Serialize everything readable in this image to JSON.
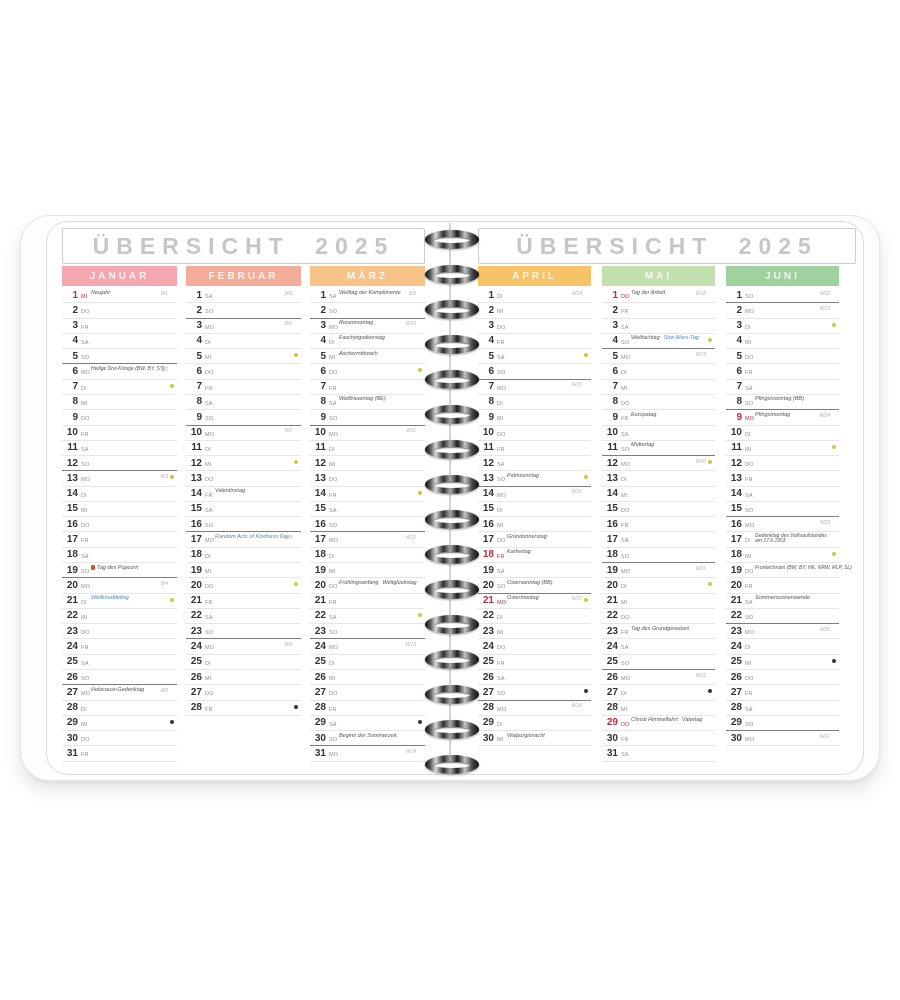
{
  "title_left": "ÜBERSICHT 2025",
  "title_right": "ÜBERSICHT 2025",
  "colors": {
    "holiday_red": "#c32a40",
    "special_blue": "#4f8ab3",
    "moon_light": "#d2c843",
    "moon_dark": "#3a3a3a"
  },
  "months": [
    {
      "name": "JANUAR",
      "color": "#f3a7ae",
      "days": [
        {
          "day": 1,
          "wd": "MI",
          "red": true,
          "note": "Neujahr",
          "week": "W1"
        },
        {
          "day": 2,
          "wd": "DO"
        },
        {
          "day": 3,
          "wd": "FR"
        },
        {
          "day": 4,
          "wd": "SA"
        },
        {
          "day": 5,
          "wd": "SO"
        },
        {
          "day": 6,
          "wd": "MO",
          "note": "Heilige Drei Könige (BW, BY, ST)",
          "week": "W2"
        },
        {
          "day": 7,
          "wd": "DI",
          "moon": "fq"
        },
        {
          "day": 8,
          "wd": "MI"
        },
        {
          "day": 9,
          "wd": "DO"
        },
        {
          "day": 10,
          "wd": "FR"
        },
        {
          "day": 11,
          "wd": "SA"
        },
        {
          "day": 12,
          "wd": "SO"
        },
        {
          "day": 13,
          "wd": "MO",
          "week": "W3",
          "moon": "full"
        },
        {
          "day": 14,
          "wd": "DI"
        },
        {
          "day": 15,
          "wd": "MI"
        },
        {
          "day": 16,
          "wd": "DO"
        },
        {
          "day": 17,
          "wd": "FR"
        },
        {
          "day": 18,
          "wd": "SA"
        },
        {
          "day": 19,
          "wd": "SO",
          "icon": "popcorn",
          "note": "Tag des Popcorn"
        },
        {
          "day": 20,
          "wd": "MO",
          "week": "W4"
        },
        {
          "day": 21,
          "wd": "DI",
          "note_blue": "Weltknuddeltag",
          "moon": "lq"
        },
        {
          "day": 22,
          "wd": "MI"
        },
        {
          "day": 23,
          "wd": "DO"
        },
        {
          "day": 24,
          "wd": "FR"
        },
        {
          "day": 25,
          "wd": "SA"
        },
        {
          "day": 26,
          "wd": "SO"
        },
        {
          "day": 27,
          "wd": "MO",
          "note": "Holocaust-Gedenktag",
          "week": "W5"
        },
        {
          "day": 28,
          "wd": "DI"
        },
        {
          "day": 29,
          "wd": "MI",
          "moon": "new"
        },
        {
          "day": 30,
          "wd": "DO"
        },
        {
          "day": 31,
          "wd": "FR"
        }
      ]
    },
    {
      "name": "FEBRUAR",
      "color": "#f4ad9a",
      "days": [
        {
          "day": 1,
          "wd": "SA",
          "week": "W5"
        },
        {
          "day": 2,
          "wd": "SO"
        },
        {
          "day": 3,
          "wd": "MO",
          "week": "W6"
        },
        {
          "day": 4,
          "wd": "DI"
        },
        {
          "day": 5,
          "wd": "MI",
          "moon": "fq"
        },
        {
          "day": 6,
          "wd": "DO"
        },
        {
          "day": 7,
          "wd": "FR"
        },
        {
          "day": 8,
          "wd": "SA"
        },
        {
          "day": 9,
          "wd": "SO"
        },
        {
          "day": 10,
          "wd": "MO",
          "week": "W7"
        },
        {
          "day": 11,
          "wd": "DI"
        },
        {
          "day": 12,
          "wd": "MI",
          "moon": "full"
        },
        {
          "day": 13,
          "wd": "DO"
        },
        {
          "day": 14,
          "wd": "FR",
          "note": "Valentinstag"
        },
        {
          "day": 15,
          "wd": "SA"
        },
        {
          "day": 16,
          "wd": "SO"
        },
        {
          "day": 17,
          "wd": "MO",
          "note_blue": "Random Acts of Kindness Day",
          "week": "W8"
        },
        {
          "day": 18,
          "wd": "DI"
        },
        {
          "day": 19,
          "wd": "MI"
        },
        {
          "day": 20,
          "wd": "DO",
          "moon": "lq"
        },
        {
          "day": 21,
          "wd": "FR"
        },
        {
          "day": 22,
          "wd": "SA"
        },
        {
          "day": 23,
          "wd": "SO"
        },
        {
          "day": 24,
          "wd": "MO",
          "week": "W9"
        },
        {
          "day": 25,
          "wd": "DI"
        },
        {
          "day": 26,
          "wd": "MI"
        },
        {
          "day": 27,
          "wd": "DO"
        },
        {
          "day": 28,
          "wd": "FR",
          "moon": "new"
        }
      ]
    },
    {
      "name": "MÄRZ",
      "color": "#f8c388",
      "days": [
        {
          "day": 1,
          "wd": "SA",
          "note": "Welttag der Komplimente",
          "week": "W9"
        },
        {
          "day": 2,
          "wd": "SO"
        },
        {
          "day": 3,
          "wd": "MO",
          "note": "Rosenmontag",
          "week": "W10"
        },
        {
          "day": 4,
          "wd": "DI",
          "note": "Faschingsdienstag"
        },
        {
          "day": 5,
          "wd": "MI",
          "note": "Aschermittwoch"
        },
        {
          "day": 6,
          "wd": "DO",
          "moon": "fq"
        },
        {
          "day": 7,
          "wd": "FR"
        },
        {
          "day": 8,
          "wd": "SA",
          "note": "Weltfrauentag (BE)"
        },
        {
          "day": 9,
          "wd": "SO"
        },
        {
          "day": 10,
          "wd": "MO",
          "week": "W11"
        },
        {
          "day": 11,
          "wd": "DI"
        },
        {
          "day": 12,
          "wd": "MI"
        },
        {
          "day": 13,
          "wd": "DO"
        },
        {
          "day": 14,
          "wd": "FR",
          "moon": "full"
        },
        {
          "day": 15,
          "wd": "SA"
        },
        {
          "day": 16,
          "wd": "SO"
        },
        {
          "day": 17,
          "wd": "MO",
          "week": "W12"
        },
        {
          "day": 18,
          "wd": "DI"
        },
        {
          "day": 19,
          "wd": "MI"
        },
        {
          "day": 20,
          "wd": "DO",
          "note": "Frühlingsanfang",
          "note2": "Weltglückstag"
        },
        {
          "day": 21,
          "wd": "FR"
        },
        {
          "day": 22,
          "wd": "SA",
          "moon": "lq"
        },
        {
          "day": 23,
          "wd": "SO"
        },
        {
          "day": 24,
          "wd": "MO",
          "week": "W13"
        },
        {
          "day": 25,
          "wd": "DI"
        },
        {
          "day": 26,
          "wd": "MI"
        },
        {
          "day": 27,
          "wd": "DO"
        },
        {
          "day": 28,
          "wd": "FR"
        },
        {
          "day": 29,
          "wd": "SA",
          "moon": "new"
        },
        {
          "day": 30,
          "wd": "SO",
          "note": "Beginn der Sommerzeit"
        },
        {
          "day": 31,
          "wd": "MO",
          "week": "W14"
        }
      ]
    },
    {
      "name": "APRIL",
      "color": "#f6c368",
      "days": [
        {
          "day": 1,
          "wd": "DI",
          "week": "W14"
        },
        {
          "day": 2,
          "wd": "MI"
        },
        {
          "day": 3,
          "wd": "DO"
        },
        {
          "day": 4,
          "wd": "FR"
        },
        {
          "day": 5,
          "wd": "SA",
          "moon": "fq"
        },
        {
          "day": 6,
          "wd": "SO"
        },
        {
          "day": 7,
          "wd": "MO",
          "week": "W15"
        },
        {
          "day": 8,
          "wd": "DI"
        },
        {
          "day": 9,
          "wd": "MI"
        },
        {
          "day": 10,
          "wd": "DO"
        },
        {
          "day": 11,
          "wd": "FR"
        },
        {
          "day": 12,
          "wd": "SA"
        },
        {
          "day": 13,
          "wd": "SO",
          "note": "Palmsonntag",
          "moon": "full"
        },
        {
          "day": 14,
          "wd": "MO",
          "week": "W16"
        },
        {
          "day": 15,
          "wd": "DI"
        },
        {
          "day": 16,
          "wd": "MI"
        },
        {
          "day": 17,
          "wd": "DO",
          "note": "Gründonnerstag"
        },
        {
          "day": 18,
          "wd": "FR",
          "red": true,
          "note": "Karfreitag"
        },
        {
          "day": 19,
          "wd": "SA"
        },
        {
          "day": 20,
          "wd": "SO",
          "note": "Ostersonntag (BB)"
        },
        {
          "day": 21,
          "wd": "MO",
          "red": true,
          "note": "Ostermontag",
          "week": "W17",
          "moon": "lq"
        },
        {
          "day": 22,
          "wd": "DI"
        },
        {
          "day": 23,
          "wd": "MI"
        },
        {
          "day": 24,
          "wd": "DO"
        },
        {
          "day": 25,
          "wd": "FR"
        },
        {
          "day": 26,
          "wd": "SA"
        },
        {
          "day": 27,
          "wd": "SO",
          "moon": "new"
        },
        {
          "day": 28,
          "wd": "MO",
          "week": "W18"
        },
        {
          "day": 29,
          "wd": "DI"
        },
        {
          "day": 30,
          "wd": "MI",
          "note": "Walpurgisnacht"
        }
      ]
    },
    {
      "name": "MAI",
      "color": "#c3dfae",
      "days": [
        {
          "day": 1,
          "wd": "DO",
          "red": true,
          "note": "Tag der Arbeit",
          "week": "W18"
        },
        {
          "day": 2,
          "wd": "FR"
        },
        {
          "day": 3,
          "wd": "SA"
        },
        {
          "day": 4,
          "wd": "SO",
          "note": "Weltlachtag",
          "note_blue": "Star-Wars-Tag",
          "moon": "fq"
        },
        {
          "day": 5,
          "wd": "MO",
          "week": "W19"
        },
        {
          "day": 6,
          "wd": "DI"
        },
        {
          "day": 7,
          "wd": "MI"
        },
        {
          "day": 8,
          "wd": "DO"
        },
        {
          "day": 9,
          "wd": "FR",
          "note": "Europatag"
        },
        {
          "day": 10,
          "wd": "SA"
        },
        {
          "day": 11,
          "wd": "SO",
          "note": "Muttertag"
        },
        {
          "day": 12,
          "wd": "MO",
          "week": "W20",
          "moon": "full"
        },
        {
          "day": 13,
          "wd": "DI"
        },
        {
          "day": 14,
          "wd": "MI"
        },
        {
          "day": 15,
          "wd": "DO"
        },
        {
          "day": 16,
          "wd": "FR"
        },
        {
          "day": 17,
          "wd": "SA"
        },
        {
          "day": 18,
          "wd": "SO"
        },
        {
          "day": 19,
          "wd": "MO",
          "week": "W21"
        },
        {
          "day": 20,
          "wd": "DI",
          "moon": "lq"
        },
        {
          "day": 21,
          "wd": "MI"
        },
        {
          "day": 22,
          "wd": "DO"
        },
        {
          "day": 23,
          "wd": "FR",
          "note": "Tag des Grundgesetzes"
        },
        {
          "day": 24,
          "wd": "SA"
        },
        {
          "day": 25,
          "wd": "SO"
        },
        {
          "day": 26,
          "wd": "MO",
          "week": "W22"
        },
        {
          "day": 27,
          "wd": "DI",
          "moon": "new"
        },
        {
          "day": 28,
          "wd": "MI"
        },
        {
          "day": 29,
          "wd": "DO",
          "red": true,
          "note": "Christi Himmelfahrt",
          "note2": "Vatertag"
        },
        {
          "day": 30,
          "wd": "FR"
        },
        {
          "day": 31,
          "wd": "SA"
        }
      ]
    },
    {
      "name": "JUNI",
      "color": "#a0d2a0",
      "days": [
        {
          "day": 1,
          "wd": "SO",
          "week": "W22"
        },
        {
          "day": 2,
          "wd": "MO",
          "week": "W23"
        },
        {
          "day": 3,
          "wd": "DI",
          "moon": "fq"
        },
        {
          "day": 4,
          "wd": "MI"
        },
        {
          "day": 5,
          "wd": "DO"
        },
        {
          "day": 6,
          "wd": "FR"
        },
        {
          "day": 7,
          "wd": "SA"
        },
        {
          "day": 8,
          "wd": "SO",
          "note": "Pfingstsonntag (BB)"
        },
        {
          "day": 9,
          "wd": "MO",
          "red": true,
          "note": "Pfingstmontag",
          "week": "W24"
        },
        {
          "day": 10,
          "wd": "DI"
        },
        {
          "day": 11,
          "wd": "MI",
          "moon": "full"
        },
        {
          "day": 12,
          "wd": "DO"
        },
        {
          "day": 13,
          "wd": "FR"
        },
        {
          "day": 14,
          "wd": "SA"
        },
        {
          "day": 15,
          "wd": "SO"
        },
        {
          "day": 16,
          "wd": "MO",
          "week": "W25"
        },
        {
          "day": 17,
          "wd": "DI",
          "note": "Gedenktag des Volksaufstandes am 17.6.1953",
          "wrap": true
        },
        {
          "day": 18,
          "wd": "MI",
          "moon": "lq"
        },
        {
          "day": 19,
          "wd": "DO",
          "note": "Fronleichnam (BW, BY, HE, NRW, RLP, SL)"
        },
        {
          "day": 20,
          "wd": "FR"
        },
        {
          "day": 21,
          "wd": "SA",
          "note": "Sommersonnenwende"
        },
        {
          "day": 22,
          "wd": "SO"
        },
        {
          "day": 23,
          "wd": "MO",
          "week": "W26"
        },
        {
          "day": 24,
          "wd": "DI"
        },
        {
          "day": 25,
          "wd": "MI",
          "moon": "new"
        },
        {
          "day": 26,
          "wd": "DO"
        },
        {
          "day": 27,
          "wd": "FR"
        },
        {
          "day": 28,
          "wd": "SA"
        },
        {
          "day": 29,
          "wd": "SO"
        },
        {
          "day": 30,
          "wd": "MO",
          "week": "W27"
        }
      ]
    }
  ]
}
